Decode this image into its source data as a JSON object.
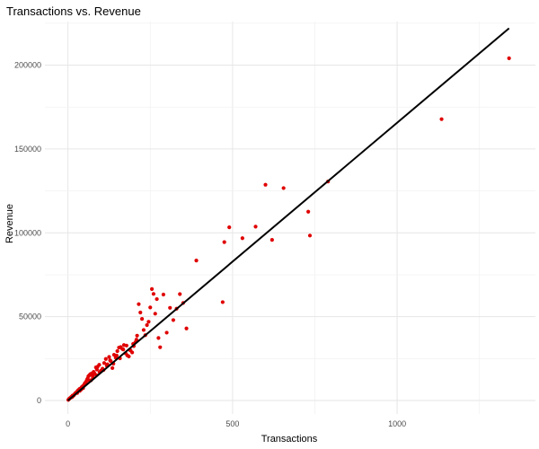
{
  "chart_data": {
    "type": "scatter",
    "title": "Transactions vs. Revenue",
    "xlabel": "Transactions",
    "ylabel": "Revenue",
    "xlim": [
      -70,
      1420
    ],
    "ylim": [
      -8000,
      226000
    ],
    "x_ticks": [
      0,
      500,
      1000
    ],
    "x_tick_labels": [
      "0",
      "500",
      "1000"
    ],
    "y_ticks": [
      0,
      50000,
      100000,
      150000,
      200000
    ],
    "y_tick_labels": [
      "0",
      "50000",
      "100000",
      "150000",
      "200000"
    ],
    "grid": true,
    "legend": "none",
    "point_color": "#e00000",
    "line_color": "#000000",
    "series": [
      {
        "values": [
          [
            1,
            400
          ],
          [
            3,
            900
          ],
          [
            5,
            1300
          ],
          [
            8,
            1700
          ],
          [
            10,
            2200
          ],
          [
            12,
            2000
          ],
          [
            15,
            2600
          ],
          [
            18,
            3200
          ],
          [
            20,
            3800
          ],
          [
            22,
            4300
          ],
          [
            25,
            4800
          ],
          [
            27,
            5200
          ],
          [
            30,
            5900
          ],
          [
            32,
            6300
          ],
          [
            35,
            6900
          ],
          [
            38,
            7200
          ],
          [
            40,
            6600
          ],
          [
            42,
            8100
          ],
          [
            45,
            8600
          ],
          [
            48,
            9000
          ],
          [
            50,
            9800
          ],
          [
            52,
            10500
          ],
          [
            55,
            11300
          ],
          [
            58,
            12500
          ],
          [
            60,
            13200
          ],
          [
            62,
            14500
          ],
          [
            65,
            15100
          ],
          [
            68,
            15800
          ],
          [
            70,
            12100
          ],
          [
            72,
            16200
          ],
          [
            75,
            14700
          ],
          [
            78,
            17100
          ],
          [
            80,
            16300
          ],
          [
            85,
            19800
          ],
          [
            88,
            18500
          ],
          [
            90,
            20200
          ],
          [
            95,
            21300
          ],
          [
            100,
            17800
          ],
          [
            105,
            19000
          ],
          [
            110,
            22400
          ],
          [
            115,
            24800
          ],
          [
            120,
            21600
          ],
          [
            125,
            26000
          ],
          [
            130,
            23500
          ],
          [
            135,
            19400
          ],
          [
            140,
            27300
          ],
          [
            145,
            25600
          ],
          [
            150,
            29500
          ],
          [
            155,
            31600
          ],
          [
            160,
            31900
          ],
          [
            165,
            30800
          ],
          [
            170,
            33100
          ],
          [
            175,
            28200
          ],
          [
            180,
            27000
          ],
          [
            185,
            26300
          ],
          [
            190,
            29900
          ],
          [
            195,
            28700
          ],
          [
            200,
            32500
          ],
          [
            205,
            34800
          ],
          [
            210,
            38700
          ],
          [
            215,
            57500
          ],
          [
            220,
            52500
          ],
          [
            225,
            48700
          ],
          [
            230,
            42100
          ],
          [
            235,
            39000
          ],
          [
            240,
            45000
          ],
          [
            245,
            47000
          ],
          [
            250,
            55500
          ],
          [
            255,
            66500
          ],
          [
            260,
            63600
          ],
          [
            265,
            51800
          ],
          [
            270,
            60500
          ],
          [
            275,
            37300
          ],
          [
            280,
            31800
          ],
          [
            290,
            63200
          ],
          [
            300,
            40500
          ],
          [
            310,
            55300
          ],
          [
            320,
            48000
          ],
          [
            330,
            54800
          ],
          [
            340,
            63500
          ],
          [
            350,
            58200
          ],
          [
            360,
            43000
          ],
          [
            390,
            83500
          ],
          [
            470,
            58700
          ],
          [
            475,
            94500
          ],
          [
            490,
            103300
          ],
          [
            530,
            96800
          ],
          [
            570,
            103700
          ],
          [
            600,
            128700
          ],
          [
            620,
            95800
          ],
          [
            655,
            126700
          ],
          [
            730,
            112600
          ],
          [
            735,
            98400
          ],
          [
            790,
            130600
          ],
          [
            1135,
            167800
          ],
          [
            1340,
            204100
          ],
          [
            14,
            3000
          ],
          [
            28,
            4500
          ],
          [
            36,
            5800
          ],
          [
            46,
            7400
          ],
          [
            56,
            10200
          ],
          [
            66,
            11800
          ],
          [
            76,
            13500
          ],
          [
            86,
            15200
          ],
          [
            96,
            16900
          ],
          [
            108,
            18200
          ],
          [
            118,
            20800
          ],
          [
            128,
            24000
          ],
          [
            138,
            22000
          ],
          [
            148,
            26800
          ],
          [
            158,
            25200
          ],
          [
            168,
            30500
          ],
          [
            178,
            32800
          ],
          [
            188,
            30200
          ],
          [
            198,
            33800
          ],
          [
            208,
            36300
          ]
        ]
      }
    ],
    "fit_line": {
      "x": [
        0,
        1340
      ],
      "y": [
        0,
        222000
      ]
    }
  }
}
